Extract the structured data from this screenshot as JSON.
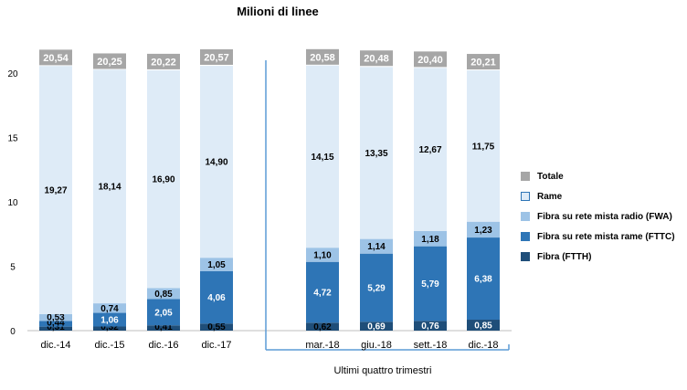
{
  "chart_data": {
    "type": "bar",
    "stacked": true,
    "title": "Milioni di linee",
    "categories": [
      "dic.-14",
      "dic.-15",
      "dic.-16",
      "dic.-17",
      "mar.-18",
      "giu.-18",
      "sett.-18",
      "dic.-18"
    ],
    "series": [
      {
        "name": "Fibra (FTTH)",
        "color": "#1f4e79",
        "values": [
          0.31,
          0.32,
          0.41,
          0.55,
          0.62,
          0.69,
          0.76,
          0.85
        ],
        "labels": [
          "0,31",
          "0,32",
          "0,41",
          "0,55",
          "0,62",
          "0,69",
          "0,76",
          "0,85"
        ]
      },
      {
        "name": "Fibra su rete mista rame (FTTC)",
        "color": "#2e75b6",
        "values": [
          0.44,
          1.06,
          2.05,
          4.06,
          4.72,
          5.29,
          5.79,
          6.38
        ],
        "labels": [
          "0,44",
          "1,06",
          "2,05",
          "4,06",
          "4,72",
          "5,29",
          "5,79",
          "6,38"
        ]
      },
      {
        "name": "Fibra su rete mista radio (FWA)",
        "color": "#9dc3e6",
        "values": [
          0.53,
          0.74,
          0.85,
          1.05,
          1.1,
          1.14,
          1.18,
          1.23
        ],
        "labels": [
          "0,53",
          "0,74",
          "0,85",
          "1,05",
          "1,10",
          "1,14",
          "1,18",
          "1,23"
        ]
      },
      {
        "name": "Rame",
        "color": "#deebf7",
        "values": [
          19.27,
          18.14,
          16.9,
          14.9,
          14.15,
          13.35,
          12.67,
          11.75
        ],
        "labels": [
          "19,27",
          "18,14",
          "16,90",
          "14,90",
          "14,15",
          "13,35",
          "12,67",
          "11,75"
        ]
      }
    ],
    "totals": {
      "name": "Totale",
      "color": "#a6a6a6",
      "values": [
        20.54,
        20.25,
        20.22,
        20.57,
        20.58,
        20.48,
        20.4,
        20.21
      ],
      "labels": [
        "20,54",
        "20,25",
        "20,22",
        "20,57",
        "20,58",
        "20,48",
        "20,40",
        "20,21"
      ]
    },
    "ylim": [
      0,
      20
    ],
    "yticks": [
      "0",
      "5",
      "10",
      "15",
      "20"
    ],
    "group_label": "Ultimi quattro trimestri",
    "separator_color": "#5b9bd5",
    "legend_position": "right",
    "legend": [
      {
        "name": "Totale",
        "color": "#a6a6a6"
      },
      {
        "name": "Rame",
        "color": "#deebf7"
      },
      {
        "name": "Fibra su rete mista radio (FWA)",
        "color": "#9dc3e6"
      },
      {
        "name": "Fibra su rete mista rame (FTTC)",
        "color": "#2e75b6"
      },
      {
        "name": "Fibra (FTTH)",
        "color": "#1f4e79"
      }
    ]
  }
}
